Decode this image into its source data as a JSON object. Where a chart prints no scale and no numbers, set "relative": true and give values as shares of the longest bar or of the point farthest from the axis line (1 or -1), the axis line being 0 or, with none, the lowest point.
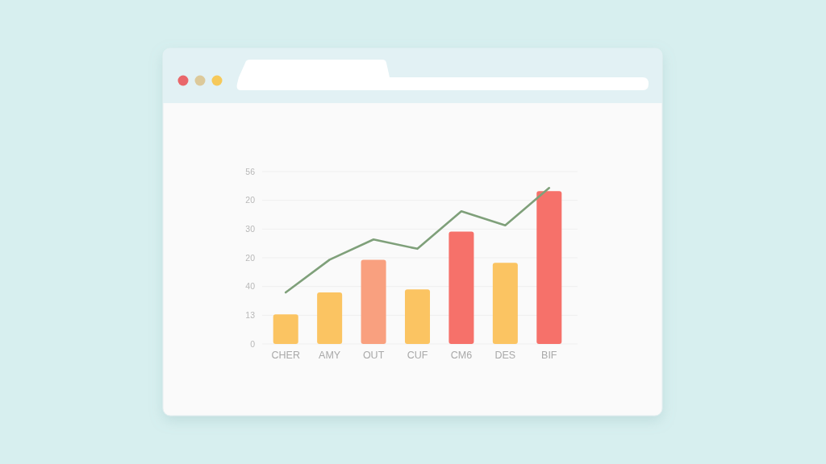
{
  "chart_data": {
    "type": "bar",
    "categories": [
      "CHER",
      "AMY",
      "OUT",
      "CUF",
      "CM6",
      "DES",
      "BIF"
    ],
    "series": [
      {
        "colors": [
          "#fbc462",
          "#fbc462",
          "#f9a07f",
          "#fbc462",
          "#f6716a",
          "#fbc462",
          "#f6716a"
        ],
        "values": [
          0.19,
          0.33,
          0.54,
          0.35,
          0.72,
          0.52,
          0.98
        ]
      },
      {
        "type": "line",
        "color": "#7fa07a",
        "values": [
          0.33,
          0.54,
          0.67,
          0.61,
          0.85,
          0.76,
          1
        ]
      }
    ],
    "relative": true,
    "annotations": [
      "56",
      "20",
      "30",
      "20",
      "40",
      "13",
      "0"
    ],
    "grid": "y"
  }
}
